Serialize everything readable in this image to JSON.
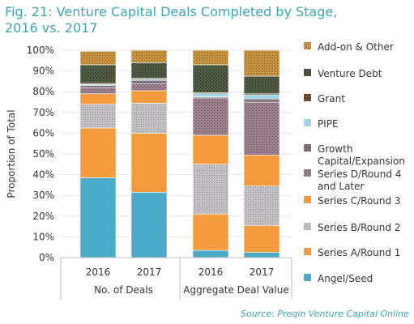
{
  "chart_data": {
    "type": "bar",
    "stacked": true,
    "title_lines": [
      "Fig. 21: Venture Capital Deals Completed by Stage,",
      "2016 vs. 2017"
    ],
    "ylabel": "Proportion of Total",
    "ylim": [
      0,
      100
    ],
    "yticks": [
      "0%",
      "10%",
      "20%",
      "30%",
      "40%",
      "50%",
      "60%",
      "70%",
      "80%",
      "90%",
      "100%"
    ],
    "categories": [
      "2016",
      "2017",
      "2016",
      "2017"
    ],
    "groups": [
      {
        "label": "No. of Deals",
        "categories": [
          0,
          1
        ]
      },
      {
        "label": "Aggregate Deal Value",
        "categories": [
          2,
          3
        ]
      }
    ],
    "series": [
      {
        "name": "Angel/Seed",
        "color": "#4aaac8",
        "values": [
          38.5,
          31.5,
          3.5,
          2.5
        ]
      },
      {
        "name": "Series A/Round 1",
        "color": "#f39a3c",
        "values": [
          24,
          28.5,
          17.5,
          13
        ]
      },
      {
        "name": "Series B/Round 2",
        "color": "#b9b6b9",
        "values": [
          11.5,
          14.5,
          24,
          19
        ]
      },
      {
        "name": "Series C/Round 3",
        "color": "#f39a3c",
        "values": [
          5,
          6,
          14,
          15
        ]
      },
      {
        "name": "Series D/Round 4 and Later",
        "color": "#9a7d8a",
        "values": [
          3,
          3.5,
          18,
          25.5
        ]
      },
      {
        "name": "Growth Capital/Expansion",
        "color": "#7f6f78",
        "values": [
          1,
          1.5,
          0.5,
          1.5
        ]
      },
      {
        "name": "PIPE",
        "color": "#9fd3e6",
        "values": [
          0.5,
          0.5,
          1.5,
          2
        ]
      },
      {
        "name": "Grant",
        "color": "#5a3e2b",
        "values": [
          0.5,
          0.5,
          0.5,
          0.5
        ]
      },
      {
        "name": "Venture Debt",
        "color": "#4f5a45",
        "values": [
          9,
          7.5,
          13.5,
          8.5
        ]
      },
      {
        "name": "Add-on & Other",
        "color": "#c08a3a",
        "values": [
          6.5,
          6,
          7,
          12.5
        ]
      }
    ],
    "legend_order": [
      9,
      8,
      7,
      6,
      5,
      4,
      3,
      2,
      1,
      0
    ],
    "legend_display": [
      [
        "Add-on & Other"
      ],
      [
        "Venture Debt"
      ],
      [
        "Grant"
      ],
      [
        "PIPE"
      ],
      [
        "Growth",
        "Capital/Expansion"
      ],
      [
        "Series D/Round 4",
        "and Later"
      ],
      [
        "Series C/Round 3"
      ],
      [
        "Series B/Round 2"
      ],
      [
        "Series A/Round 1"
      ],
      [
        "Angel/Seed"
      ]
    ],
    "legend_position": "right"
  },
  "source": "Source: Preqin Venture Capital Online"
}
